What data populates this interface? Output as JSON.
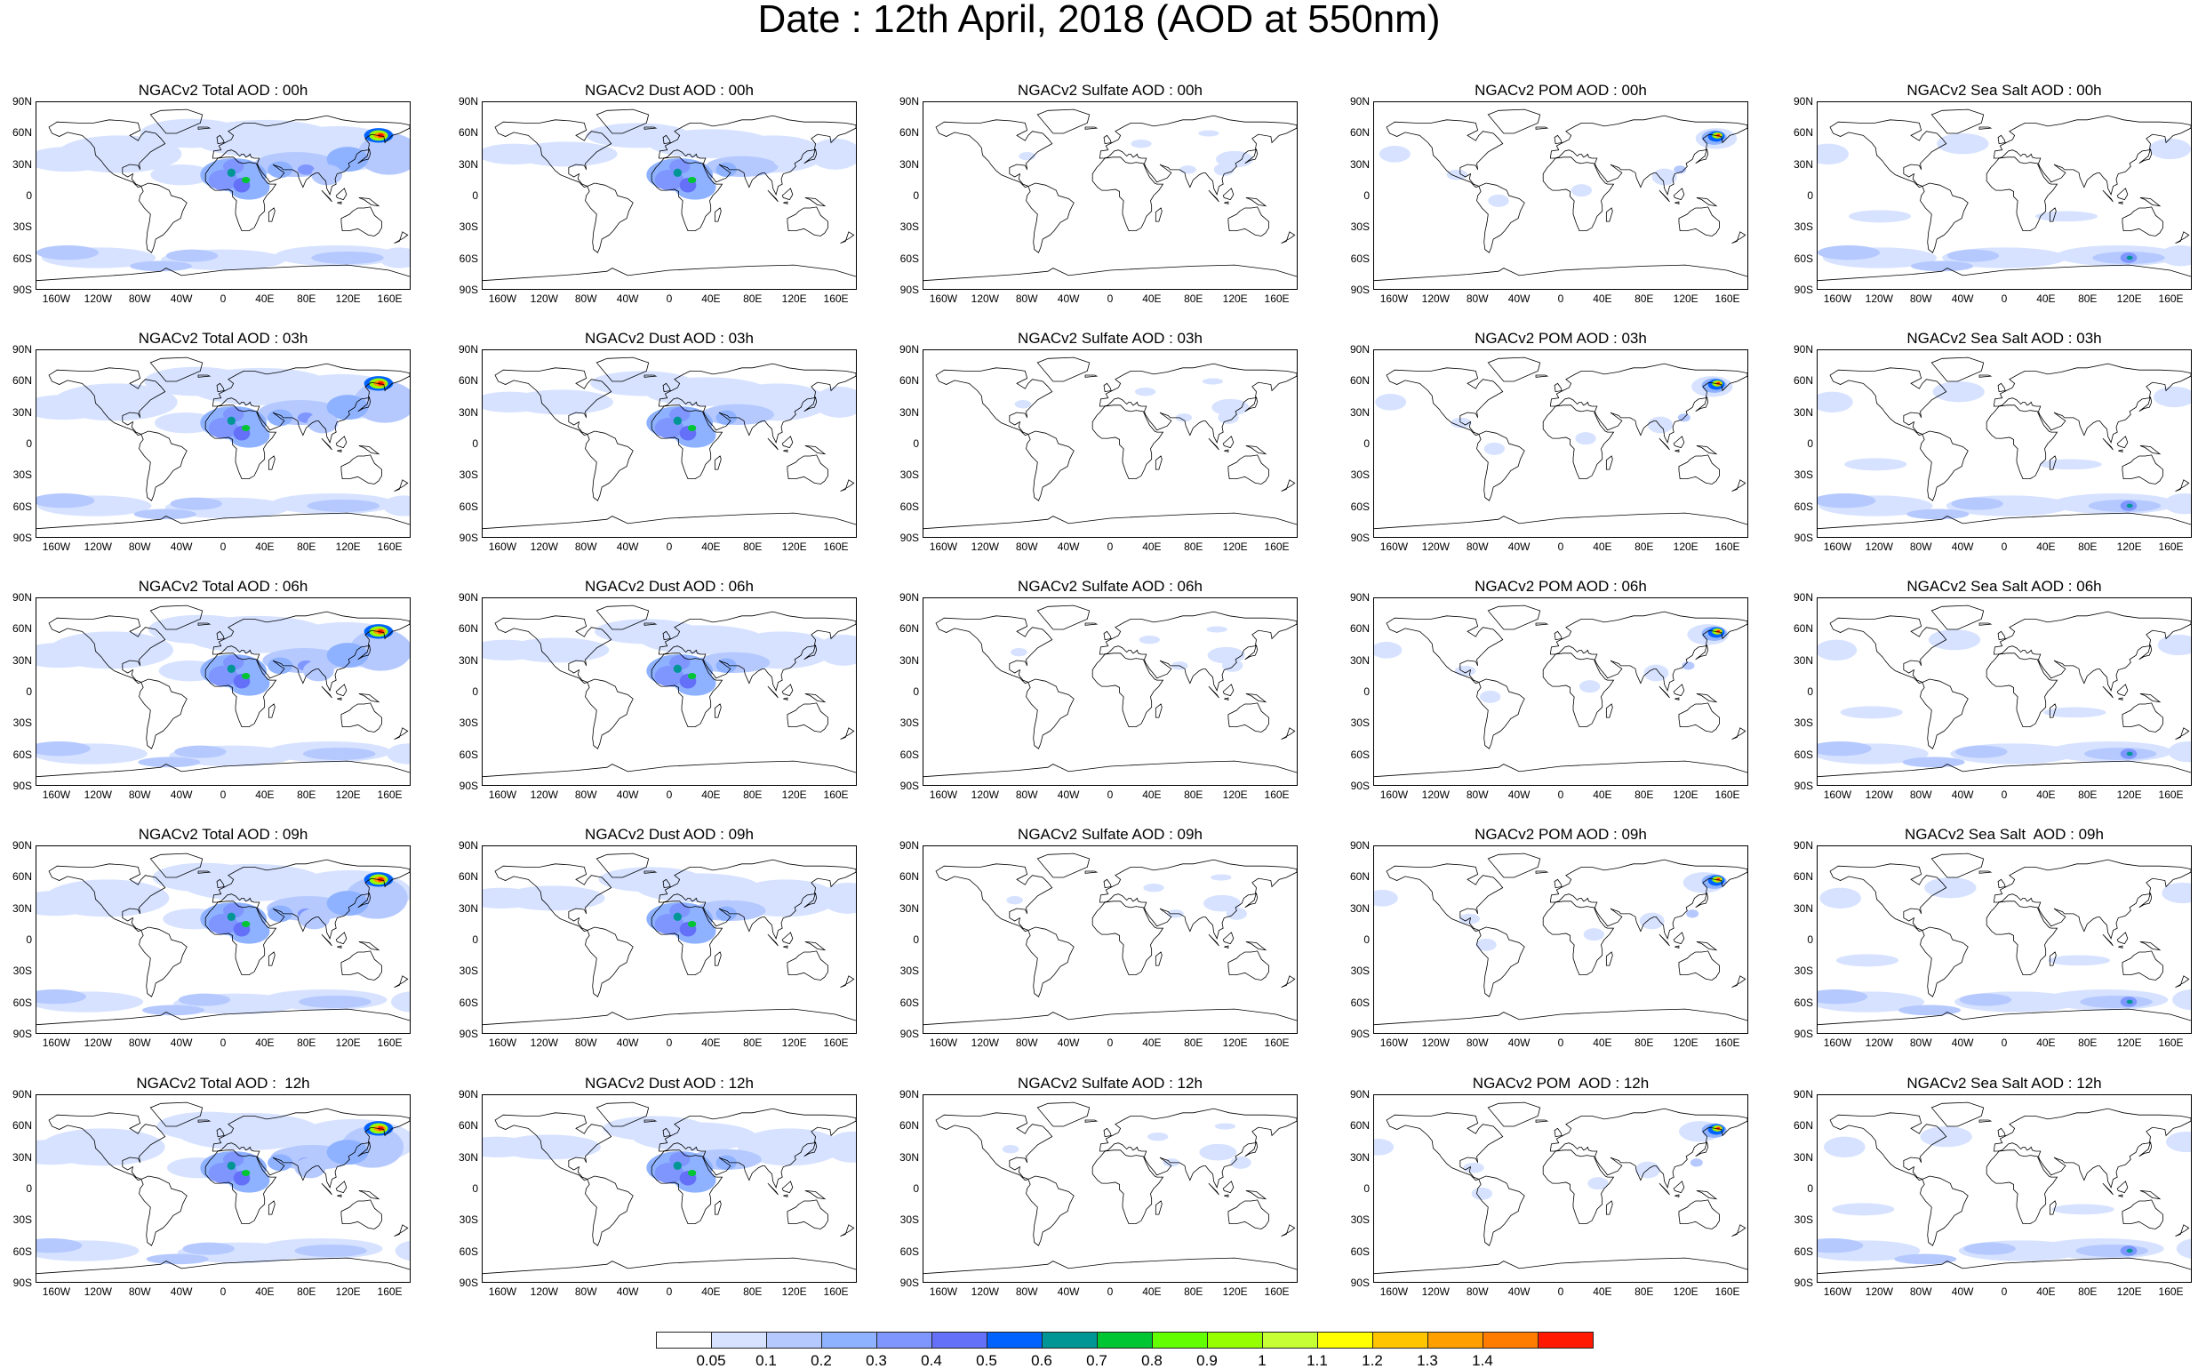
{
  "title": "Date : 12th April, 2018 (AOD at 550nm)",
  "lat_labels": [
    "90N",
    "60N",
    "30N",
    "0",
    "30S",
    "60S",
    "90S"
  ],
  "lon_labels": [
    "160W",
    "120W",
    "80W",
    "40W",
    "0",
    "40E",
    "80E",
    "120E",
    "160E"
  ],
  "columns": [
    "total",
    "dust",
    "sulfate",
    "pom",
    "seasalt"
  ],
  "panels": [
    [
      {
        "title": "NGACv2 Total AOD : 00h",
        "field": "total"
      },
      {
        "title": "NGACv2 Dust AOD : 00h",
        "field": "dust"
      },
      {
        "title": "NGACv2 Sulfate AOD : 00h",
        "field": "sulfate"
      },
      {
        "title": "NGACv2 POM AOD : 00h",
        "field": "pom"
      },
      {
        "title": "NGACv2 Sea Salt AOD : 00h",
        "field": "seasalt"
      }
    ],
    [
      {
        "title": "NGACv2 Total AOD : 03h",
        "field": "total"
      },
      {
        "title": "NGACv2 Dust AOD : 03h",
        "field": "dust"
      },
      {
        "title": "NGACv2 Sulfate AOD : 03h",
        "field": "sulfate"
      },
      {
        "title": "NGACv2 POM AOD : 03h",
        "field": "pom"
      },
      {
        "title": "NGACv2 Sea Salt AOD : 03h",
        "field": "seasalt"
      }
    ],
    [
      {
        "title": "NGACv2 Total AOD : 06h",
        "field": "total"
      },
      {
        "title": "NGACv2 Dust AOD : 06h",
        "field": "dust"
      },
      {
        "title": "NGACv2 Sulfate AOD : 06h",
        "field": "sulfate"
      },
      {
        "title": "NGACv2 POM AOD : 06h",
        "field": "pom"
      },
      {
        "title": "NGACv2 Sea Salt AOD : 06h",
        "field": "seasalt"
      }
    ],
    [
      {
        "title": "NGACv2 Total AOD : 09h",
        "field": "total"
      },
      {
        "title": "NGACv2 Dust AOD : 09h",
        "field": "dust"
      },
      {
        "title": "NGACv2 Sulfate AOD : 09h",
        "field": "sulfate"
      },
      {
        "title": "NGACv2 POM AOD : 09h",
        "field": "pom"
      },
      {
        "title": "NGACv2 Sea Salt  AOD : 09h",
        "field": "seasalt"
      }
    ],
    [
      {
        "title": "NGACv2 Total AOD :  12h",
        "field": "total"
      },
      {
        "title": "NGACv2 Dust AOD : 12h",
        "field": "dust"
      },
      {
        "title": "NGACv2 Sulfate AOD : 12h",
        "field": "sulfate"
      },
      {
        "title": "NGACv2 POM  AOD : 12h",
        "field": "pom"
      },
      {
        "title": "NGACv2 Sea Salt AOD : 12h",
        "field": "seasalt"
      }
    ]
  ],
  "colorbar": {
    "colors": [
      "#ffffff",
      "#d6e2ff",
      "#b5c9ff",
      "#8eb2ff",
      "#7f96ff",
      "#6370f7",
      "#0063ff",
      "#009696",
      "#00c633",
      "#63ff00",
      "#96ff00",
      "#c6ff33",
      "#ffff00",
      "#ffc600",
      "#ffa000",
      "#ff7c00",
      "#ff1900"
    ],
    "labels": [
      "0.05",
      "0.1",
      "0.2",
      "0.3",
      "0.4",
      "0.5",
      "0.6",
      "0.7",
      "0.8",
      "0.9",
      "1",
      "1.1",
      "1.2",
      "1.3",
      "1.4"
    ]
  }
}
